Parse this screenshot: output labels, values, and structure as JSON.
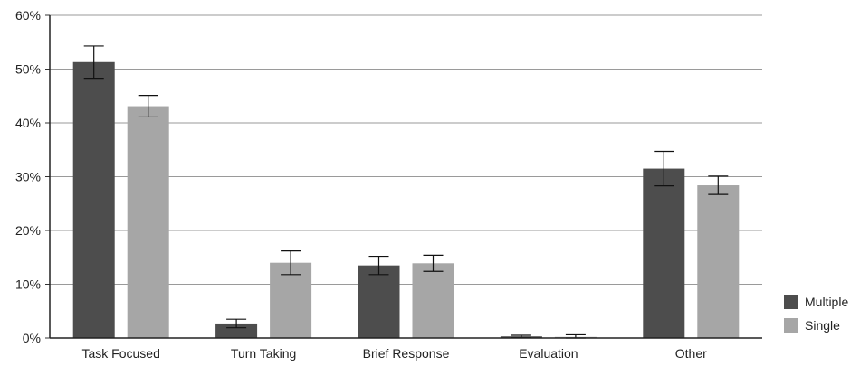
{
  "chart_data": {
    "type": "bar",
    "title": "",
    "xlabel": "",
    "ylabel": "",
    "categories": [
      "Task Focused",
      "Turn Taking",
      "Brief Response",
      "Evaluation",
      "Other"
    ],
    "series": [
      {
        "name": "Multiple",
        "color": "#4d4d4d",
        "values": [
          51.3,
          2.7,
          13.5,
          0.3,
          31.5
        ],
        "error": [
          3.0,
          0.8,
          1.7,
          0.2,
          3.2
        ]
      },
      {
        "name": "Single",
        "color": "#a6a6a6",
        "values": [
          43.1,
          14.0,
          13.9,
          0.2,
          28.4
        ],
        "error": [
          2.0,
          2.2,
          1.5,
          0.4,
          1.7
        ]
      }
    ],
    "ylim": [
      0,
      60
    ],
    "yticks": [
      0,
      10,
      20,
      30,
      40,
      50,
      60
    ],
    "ytick_labels": [
      "0%",
      "10%",
      "20%",
      "30%",
      "40%",
      "50%",
      "60%"
    ],
    "grid": true,
    "legend_position": "bottom-right"
  }
}
